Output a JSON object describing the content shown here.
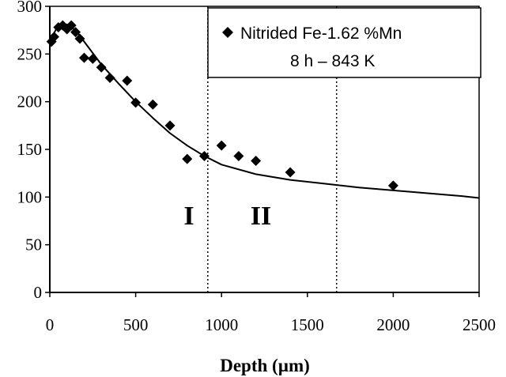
{
  "chart_data": {
    "type": "scatter",
    "title": "",
    "xlabel": "Depth (µm)",
    "ylabel": "",
    "xlim": [
      0,
      2500
    ],
    "ylim": [
      0,
      300
    ],
    "xticks": [
      0,
      500,
      1000,
      1500,
      2000,
      2500
    ],
    "yticks": [
      0,
      50,
      100,
      150,
      200,
      250,
      300
    ],
    "grid": false,
    "legend_position": "top-right",
    "legend": {
      "line1": "Nitrided Fe-1.62 %Mn",
      "line2": "8 h – 843 K"
    },
    "region_labels": [
      "I",
      "II"
    ],
    "region_boundaries": [
      920,
      1670
    ],
    "series": [
      {
        "name": "Nitrided Fe-1.62 %Mn",
        "kind": "points",
        "x": [
          10,
          25,
          50,
          75,
          100,
          125,
          150,
          175,
          200,
          250,
          300,
          350,
          450,
          500,
          600,
          700,
          800,
          900,
          1000,
          1100,
          1200,
          1400,
          2000
        ],
        "y": [
          263,
          268,
          278,
          280,
          276,
          280,
          273,
          266,
          246,
          245,
          236,
          225,
          222,
          199,
          197,
          175,
          140,
          143,
          154,
          143,
          138,
          126,
          112
        ]
      },
      {
        "name": "fit",
        "kind": "line",
        "x": [
          0,
          20,
          50,
          100,
          150,
          200,
          300,
          400,
          500,
          600,
          700,
          800,
          900,
          1000,
          1200,
          1400,
          1600,
          1800,
          2000,
          2200,
          2400,
          2500
        ],
        "y": [
          257,
          270,
          281,
          281,
          275,
          263,
          239,
          219,
          200,
          183,
          167,
          154,
          143,
          134,
          124,
          118,
          114,
          110,
          107,
          104,
          101,
          99
        ]
      }
    ],
    "colors": {
      "ink": "#000000",
      "background": "#ffffff"
    }
  }
}
